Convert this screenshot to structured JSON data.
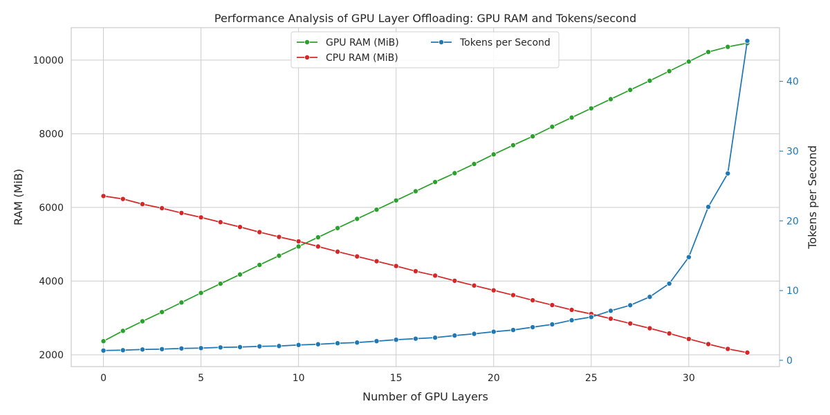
{
  "chart_data": {
    "type": "line",
    "title": "Performance Analysis of GPU Layer Offloading: GPU RAM and Tokens/second",
    "xlabel": "Number of GPU Layers",
    "ylabel": "RAM (MiB)",
    "y2label": "Tokens per Second",
    "x": [
      0,
      1,
      2,
      3,
      4,
      5,
      6,
      7,
      8,
      9,
      10,
      11,
      12,
      13,
      14,
      15,
      16,
      17,
      18,
      19,
      20,
      21,
      22,
      23,
      24,
      25,
      26,
      27,
      28,
      29,
      30,
      31,
      32,
      33
    ],
    "xlim": [
      -1.65,
      34.65
    ],
    "ylim": [
      1680,
      10880
    ],
    "y2lim": [
      -0.9,
      47.7
    ],
    "xticks": [
      0,
      5,
      10,
      15,
      20,
      25,
      30
    ],
    "yticks": [
      2000,
      4000,
      6000,
      8000,
      10000
    ],
    "y2ticks": [
      0,
      10,
      20,
      30,
      40
    ],
    "grid": true,
    "legend_position": "top-center",
    "series": [
      {
        "name": "GPU RAM (MiB)",
        "axis": "left",
        "color": "#2ca02c",
        "values": [
          2370,
          2650,
          2910,
          3160,
          3420,
          3680,
          3930,
          4180,
          4440,
          4690,
          4940,
          5190,
          5440,
          5690,
          5940,
          6190,
          6440,
          6690,
          6930,
          7180,
          7440,
          7690,
          7930,
          8190,
          8440,
          8690,
          8940,
          9190,
          9440,
          9700,
          9960,
          10220,
          10360,
          10460
        ]
      },
      {
        "name": "CPU RAM (MiB)",
        "axis": "left",
        "color": "#d62728",
        "values": [
          6310,
          6230,
          6090,
          5980,
          5850,
          5730,
          5600,
          5470,
          5330,
          5200,
          5080,
          4940,
          4800,
          4670,
          4540,
          4410,
          4270,
          4150,
          4010,
          3880,
          3750,
          3620,
          3480,
          3350,
          3220,
          3110,
          2980,
          2850,
          2720,
          2580,
          2430,
          2290,
          2160,
          2060
        ]
      },
      {
        "name": "Tokens per Second",
        "axis": "right",
        "color": "#1f77b4",
        "values": [
          1.4,
          1.45,
          1.55,
          1.6,
          1.7,
          1.75,
          1.85,
          1.9,
          2.0,
          2.05,
          2.2,
          2.3,
          2.45,
          2.55,
          2.75,
          2.95,
          3.1,
          3.25,
          3.55,
          3.8,
          4.1,
          4.35,
          4.75,
          5.15,
          5.75,
          6.2,
          7.1,
          7.9,
          9.1,
          11.0,
          14.8,
          22.0,
          26.8,
          45.8
        ]
      }
    ]
  }
}
